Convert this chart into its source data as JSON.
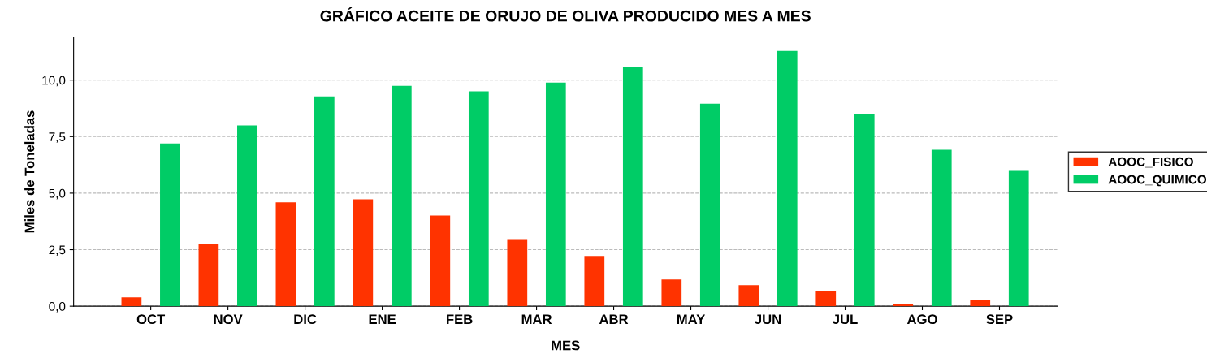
{
  "chart_data": {
    "type": "bar",
    "title": "GRÁFICO ACEITE DE ORUJO DE OLIVA PRODUCIDO MES A MES",
    "xlabel": "MES",
    "ylabel": "Miles de Toneladas",
    "categories": [
      "OCT",
      "NOV",
      "DIC",
      "ENE",
      "FEB",
      "MAR",
      "ABR",
      "MAY",
      "JUN",
      "JUL",
      "AGO",
      "SEP"
    ],
    "series": [
      {
        "name": "AOOC_FISICO",
        "color": "#ff3300",
        "values": [
          0.39,
          2.76,
          4.59,
          4.73,
          4.01,
          2.97,
          2.22,
          1.18,
          0.93,
          0.65,
          0.11,
          0.29
        ]
      },
      {
        "name": "AOOC_QUIMICO",
        "color": "#00cc66",
        "values": [
          7.2,
          8.0,
          9.28,
          9.75,
          9.5,
          9.89,
          10.57,
          8.96,
          11.29,
          8.49,
          6.92,
          6.02
        ]
      }
    ],
    "ylim": [
      0,
      11.9
    ],
    "yticks": [
      {
        "value": 0,
        "label": "0,0"
      },
      {
        "value": 2.5,
        "label": "2,5"
      },
      {
        "value": 5,
        "label": "5,0"
      },
      {
        "value": 7.5,
        "label": "7,5"
      },
      {
        "value": 10,
        "label": "10,0"
      }
    ],
    "grid": "y",
    "legend": "right"
  }
}
